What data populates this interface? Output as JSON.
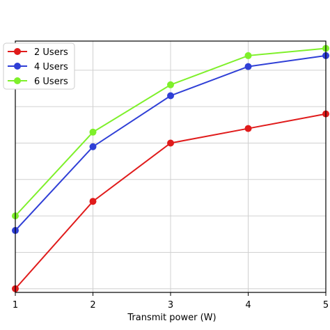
{
  "chart_data": {
    "type": "line",
    "xlabel": "Transmit power (W)",
    "ylabel": "",
    "x": [
      1,
      2,
      3,
      4,
      5
    ],
    "xlim": [
      1,
      5
    ],
    "ylim": [
      0.95,
      4.4
    ],
    "grid": true,
    "legend_position": "top-left",
    "series": [
      {
        "name": "2 Users",
        "color": "#e01b1b",
        "values": [
          1.0,
          2.2,
          3.0,
          3.2,
          3.4
        ]
      },
      {
        "name": "4 Users",
        "color": "#2f3fd6",
        "values": [
          1.8,
          2.95,
          3.65,
          4.05,
          4.2
        ]
      },
      {
        "name": "6 Users",
        "color": "#7ef02a",
        "values": [
          2.0,
          3.15,
          3.8,
          4.2,
          4.3
        ]
      }
    ]
  }
}
